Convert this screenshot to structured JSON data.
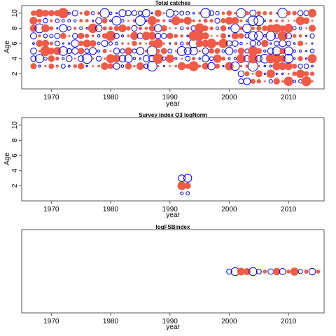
{
  "colors": {
    "positive": "#f05a46",
    "negative": "#0000ee"
  },
  "chart_data": [
    {
      "type": "scatter",
      "title": "Total catches",
      "xlabel": "year",
      "ylabel": "Age",
      "xlim": [
        1965,
        2016
      ],
      "ylim": [
        0,
        11
      ],
      "xticks": [
        1970,
        1980,
        1990,
        2000,
        2010
      ],
      "yticks": [
        2,
        4,
        6,
        8,
        10
      ],
      "grid": false,
      "legend": "none",
      "encoding": "bubble size = residual magnitude; filled red = positive, open blue = negative",
      "x_range": [
        1967,
        2014
      ],
      "y_range": [
        3,
        10
      ],
      "x_range_2": [
        2002,
        2014
      ],
      "y_range_2": [
        1,
        2
      ]
    },
    {
      "type": "scatter",
      "title": "Survey index Q3 logNorm",
      "xlabel": "year",
      "ylabel": "Age",
      "xlim": [
        1965,
        2016
      ],
      "ylim": [
        0,
        11
      ],
      "xticks": [
        1970,
        1980,
        1990,
        2000,
        2010
      ],
      "yticks": [
        2,
        4,
        6,
        8,
        10
      ],
      "grid": false,
      "legend": "none",
      "points": [
        {
          "x": 1992,
          "y": 1,
          "r": 0.2,
          "sign": "neg"
        },
        {
          "x": 1993,
          "y": 1,
          "r": 0.25,
          "sign": "neg"
        },
        {
          "x": 1992,
          "y": 2,
          "r": 0.9,
          "sign": "pos"
        },
        {
          "x": 1993,
          "y": 2,
          "r": 0.6,
          "sign": "pos"
        },
        {
          "x": 1992,
          "y": 3,
          "r": 0.7,
          "sign": "neg"
        },
        {
          "x": 1993,
          "y": 3,
          "r": 0.85,
          "sign": "neg"
        }
      ]
    },
    {
      "type": "scatter",
      "title": "logFSBindex",
      "xlabel": "year",
      "ylabel": "",
      "xlim": [
        1965,
        2016
      ],
      "xticks": [
        1970,
        1980,
        1990,
        2000,
        2010
      ],
      "grid": false,
      "legend": "none",
      "points": [
        {
          "x": 2000,
          "r": 0.55,
          "sign": "neg"
        },
        {
          "x": 2001,
          "r": 0.95,
          "sign": "neg"
        },
        {
          "x": 2002,
          "r": 0.85,
          "sign": "pos"
        },
        {
          "x": 2003,
          "r": 0.75,
          "sign": "pos"
        },
        {
          "x": 2004,
          "r": 0.95,
          "sign": "neg"
        },
        {
          "x": 2005,
          "r": 0.5,
          "sign": "neg"
        },
        {
          "x": 2006,
          "r": 0.3,
          "sign": "pos"
        },
        {
          "x": 2007,
          "r": 0.6,
          "sign": "neg"
        },
        {
          "x": 2008,
          "r": 0.8,
          "sign": "pos"
        },
        {
          "x": 2009,
          "r": 0.7,
          "sign": "neg"
        },
        {
          "x": 2010,
          "r": 0.3,
          "sign": "pos"
        },
        {
          "x": 2011,
          "r": 0.9,
          "sign": "pos"
        },
        {
          "x": 2012,
          "r": 0.4,
          "sign": "neg"
        },
        {
          "x": 2013,
          "r": 0.35,
          "sign": "pos"
        },
        {
          "x": 2014,
          "r": 0.75,
          "sign": "neg"
        },
        {
          "x": 2015,
          "r": 0.3,
          "sign": "pos"
        }
      ]
    }
  ]
}
